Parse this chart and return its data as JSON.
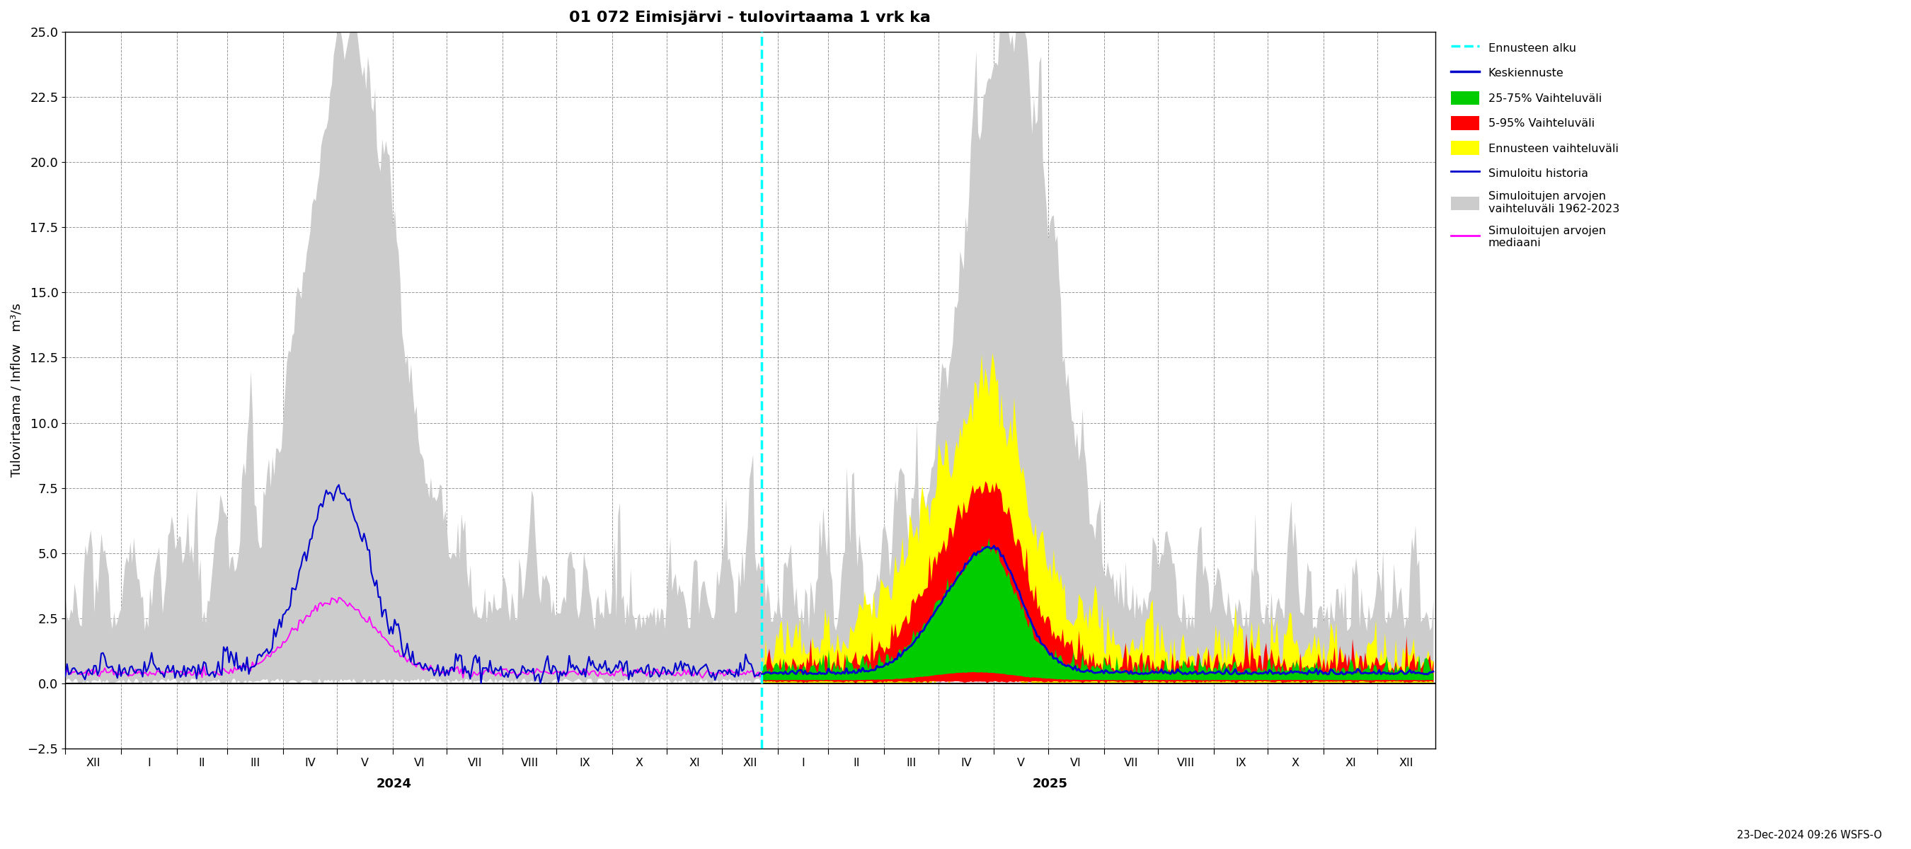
{
  "title": "01 072 Eimisjärvi - tulovirtaama 1 vrk ka",
  "ylabel": "Tulovirtaama / Inflow   m³/s",
  "ylim": [
    -2.5,
    25.0
  ],
  "yticks": [
    -2.5,
    0.0,
    2.5,
    5.0,
    7.5,
    10.0,
    12.5,
    15.0,
    17.5,
    20.0,
    22.5,
    25.0
  ],
  "background_color": "#ffffff",
  "colors": {
    "forecast_start": "#00ffff",
    "keskiennuste": "#0000cc",
    "vaihteluvali_25_75": "#00cc00",
    "vaihteluvali_5_95": "#ff0000",
    "ennusteen_vaihteluvali": "#ffff00",
    "simuloitu_historia": "#0000cc",
    "hist_vaihteluvali": "#cccccc",
    "hist_mediaani": "#ff00ff"
  },
  "timestamp": "23-Dec-2024 09:26 WSFS-O",
  "n_hist": 387,
  "n_fore": 374
}
